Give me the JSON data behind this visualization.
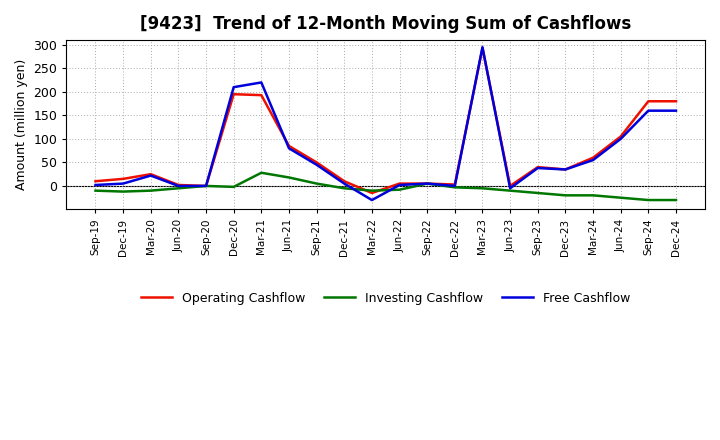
{
  "title": "[9423]  Trend of 12-Month Moving Sum of Cashflows",
  "ylabel": "Amount (million yen)",
  "ylim": [
    -50,
    310
  ],
  "yticks": [
    0,
    50,
    100,
    150,
    200,
    250,
    300
  ],
  "background_color": "#ffffff",
  "plot_bg_color": "#ffffff",
  "x_labels": [
    "Sep-19",
    "Dec-19",
    "Mar-20",
    "Jun-20",
    "Sep-20",
    "Dec-20",
    "Mar-21",
    "Jun-21",
    "Sep-21",
    "Dec-21",
    "Mar-22",
    "Jun-22",
    "Sep-22",
    "Dec-22",
    "Mar-23",
    "Jun-23",
    "Sep-23",
    "Dec-23",
    "Mar-24",
    "Jun-24",
    "Sep-24",
    "Dec-24"
  ],
  "operating": [
    10,
    15,
    25,
    2,
    0,
    195,
    193,
    85,
    50,
    10,
    -15,
    5,
    5,
    3,
    293,
    0,
    40,
    35,
    60,
    105,
    180,
    180
  ],
  "investing": [
    -10,
    -12,
    -10,
    -5,
    0,
    -2,
    28,
    18,
    5,
    -5,
    -10,
    -8,
    5,
    -3,
    -5,
    -10,
    -15,
    -20,
    -20,
    -25,
    -30,
    -30
  ],
  "free": [
    2,
    5,
    22,
    0,
    0,
    210,
    220,
    80,
    45,
    5,
    -30,
    2,
    5,
    0,
    295,
    -5,
    38,
    35,
    55,
    100,
    160,
    160
  ],
  "op_color": "#ee1100",
  "inv_color": "#007700",
  "free_color": "#0000dd",
  "line_width": 1.8,
  "legend_labels": [
    "Operating Cashflow",
    "Investing Cashflow",
    "Free Cashflow"
  ]
}
